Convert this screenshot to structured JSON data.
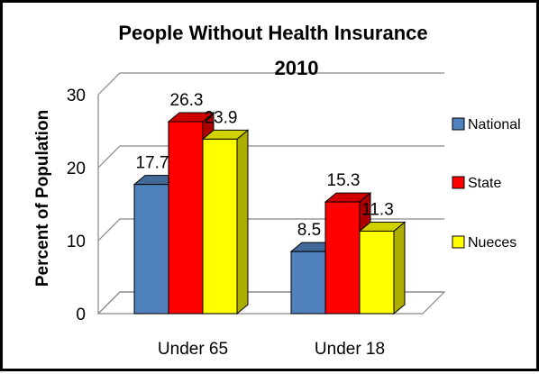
{
  "chart_data": {
    "type": "bar",
    "title": "People Without Health Insurance",
    "subtitle": "2010",
    "xlabel": "",
    "ylabel": "Percent of Population",
    "ylim": [
      0,
      30
    ],
    "yticks": [
      0,
      10,
      20,
      30
    ],
    "grid": true,
    "three_d": true,
    "legend_position": "right",
    "categories": [
      "Under 65",
      "Under 18"
    ],
    "series": [
      {
        "name": "National",
        "values": [
          17.7,
          8.5
        ],
        "color": "#4f81bd"
      },
      {
        "name": "State",
        "values": [
          26.3,
          15.3
        ],
        "color": "#ff0000"
      },
      {
        "name": "Nueces",
        "values": [
          23.9,
          11.3
        ],
        "color": "#ffff00"
      }
    ]
  }
}
